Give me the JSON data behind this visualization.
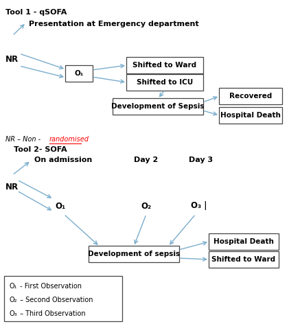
{
  "figsize": [
    4.37,
    4.72
  ],
  "dpi": 100,
  "bg_color": "#ffffff",
  "arrow_color": "#7aadcc",
  "box_edge_color": "#444444",
  "box_face_color": "#ffffff",
  "title1": "Tool 1 - qSOFA",
  "title2": "Tool 2- SOFA",
  "subtitle1": "Presentation at Emergency department",
  "subtitle2": "On admission",
  "day2_label": "Day 2",
  "day3_label": "Day 3",
  "nr_label": "NR",
  "o1_label": "O₁",
  "o2_label": "O₂",
  "o3_label": "O₃",
  "box1_text": "Shifted to Ward",
  "box2_text": "Shifted to ICU",
  "box3_text": "Development of Sepsis",
  "box4_text": "Recovered",
  "box5_text": "Hospital Death",
  "box6_text": "Development of sepsis",
  "box7_text": "Hospital Death",
  "box8_text": "Shifted to Ward",
  "nr_note_plain": "NR – Non - ",
  "nr_note_red": "randomised",
  "legend_lines": [
    [
      "O₁",
      " - First Observation"
    ],
    [
      "O₂",
      " – Second Observation"
    ],
    [
      "O₃",
      " – Third Observation"
    ]
  ]
}
